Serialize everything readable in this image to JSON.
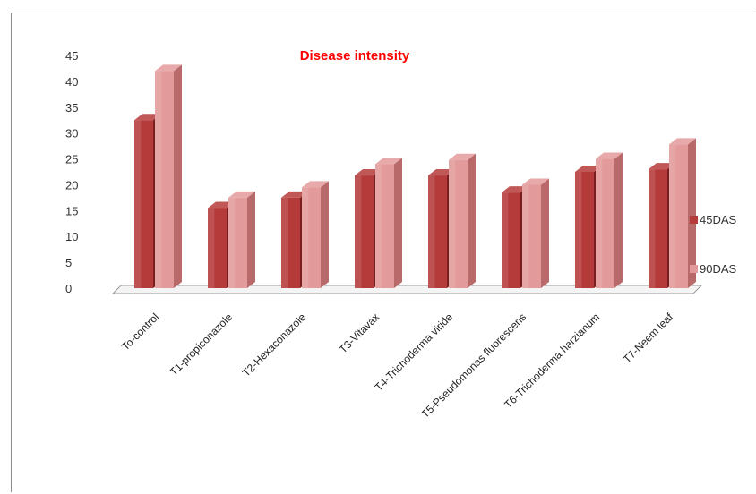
{
  "chart_data": {
    "type": "bar",
    "title": "Disease intensity",
    "xlabel": "",
    "ylabel": "",
    "ylim": [
      0,
      45
    ],
    "yticks": [
      0,
      5,
      10,
      15,
      20,
      25,
      30,
      35,
      40,
      45
    ],
    "grid": false,
    "legend_position": "right",
    "categories": [
      "To-control",
      "T1-propiconazole",
      "T2-Hexaconazole",
      "T3-Vitavax",
      "T4-Trichoderma viride",
      "T5-Pseudomonas fluorescens",
      "T6-Trichoderma harzianum",
      "T7-Neem leaf"
    ],
    "series": [
      {
        "name": "45DAS",
        "values": [
          32.5,
          15.5,
          17.5,
          21.8,
          21.8,
          18.5,
          22.5,
          23.0
        ]
      },
      {
        "name": "90DAS",
        "values": [
          42.0,
          17.5,
          19.5,
          24.0,
          24.8,
          20.0,
          25.0,
          27.8
        ]
      }
    ]
  },
  "colors": {
    "title": "#ff0000",
    "series_45": "#b53b3b",
    "series_45_dark": "#7a1f1f",
    "series_90": "#e39a9a",
    "series_90_dark": "#b86a6a",
    "floor": "#f4f4f4"
  }
}
